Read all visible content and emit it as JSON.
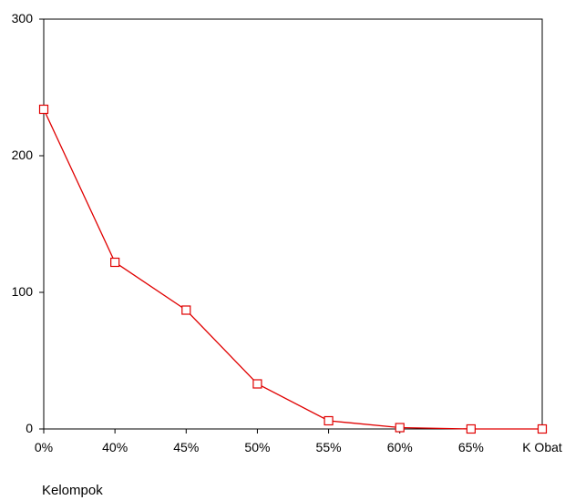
{
  "chart_data": {
    "type": "line",
    "title": "",
    "xlabel": "Kelompok",
    "ylabel": "",
    "categories": [
      "0%",
      "40%",
      "45%",
      "50%",
      "55%",
      "60%",
      "65%",
      "K Obat"
    ],
    "series": [
      {
        "values": [
          234,
          122,
          87,
          33,
          6,
          1,
          0,
          0
        ]
      }
    ],
    "ylim": [
      0,
      300
    ],
    "yticks": [
      0,
      100,
      200,
      300
    ],
    "grid": false,
    "legend": "none",
    "marker": "hollow-square",
    "colors": {
      "series": "#e00000",
      "axis": "#000000",
      "frame": "#000000"
    }
  }
}
